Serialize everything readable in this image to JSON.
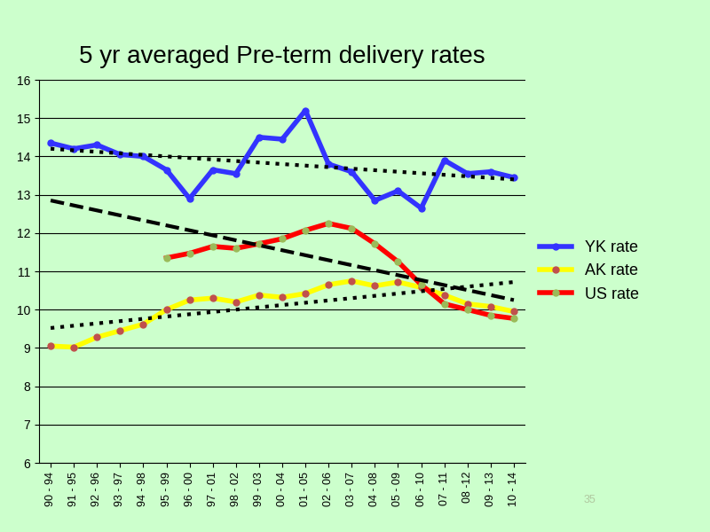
{
  "chart_data": {
    "type": "line",
    "title": "5 yr averaged Pre-term delivery rates",
    "categories": [
      "90 - 94",
      "91 - 95",
      "92 - 96",
      "93 - 97",
      "94 - 98",
      "95 - 99",
      "96 - 00",
      "97 - 01",
      "98 - 02",
      "99 - 03",
      "00 - 04",
      "01 - 05",
      "02 - 06",
      "03 - 07",
      "04 - 08",
      "05 - 09",
      "06 - 10",
      "07 - 11",
      "08 -12",
      "09 - 13",
      "10 - 14"
    ],
    "series": [
      {
        "name": "YK rate",
        "color": "#3333ff",
        "marker": "o",
        "line_style": "solid",
        "values": [
          14.35,
          14.2,
          14.3,
          14.05,
          14.0,
          13.65,
          12.9,
          13.65,
          13.55,
          14.5,
          14.45,
          15.2,
          13.8,
          13.6,
          12.85,
          13.1,
          12.65,
          13.9,
          13.55,
          13.6,
          13.45
        ]
      },
      {
        "name": "AK rate",
        "color": "#ffff00",
        "marker": "o",
        "line_style": "solid",
        "values": [
          9.05,
          9.02,
          9.28,
          9.45,
          9.62,
          10.0,
          10.25,
          10.3,
          10.2,
          10.38,
          10.32,
          10.42,
          10.65,
          10.75,
          10.62,
          10.72,
          10.58,
          10.38,
          10.15,
          10.08,
          9.95
        ]
      },
      {
        "name": "US rate",
        "color": "#ff0000",
        "marker": "o",
        "line_style": "solid",
        "values": [
          null,
          null,
          null,
          null,
          null,
          11.35,
          11.47,
          11.65,
          11.6,
          11.72,
          11.85,
          12.07,
          12.25,
          12.12,
          11.72,
          11.25,
          10.65,
          10.15,
          10.0,
          9.85,
          9.77
        ]
      },
      {
        "color": "#000000",
        "line_style": "dotted",
        "values": [
          14.2,
          14.16,
          14.12,
          14.08,
          14.04,
          14.0,
          13.96,
          13.92,
          13.88,
          13.84,
          13.8,
          13.76,
          13.72,
          13.68,
          13.64,
          13.6,
          13.56,
          13.52,
          13.48,
          13.44,
          13.4
        ]
      },
      {
        "color": "#000000",
        "line_style": "dotted",
        "values": [
          9.52,
          9.58,
          9.64,
          9.7,
          9.76,
          9.82,
          9.88,
          9.94,
          10.0,
          10.06,
          10.12,
          10.18,
          10.24,
          10.3,
          10.36,
          10.42,
          10.48,
          10.54,
          10.6,
          10.66,
          10.72
        ]
      },
      {
        "color": "#000000",
        "line_style": "dashed",
        "values": [
          12.85,
          12.72,
          12.59,
          12.46,
          12.33,
          12.2,
          12.07,
          11.94,
          11.81,
          11.68,
          11.55,
          11.42,
          11.29,
          11.16,
          11.03,
          10.9,
          10.77,
          10.64,
          10.51,
          10.38,
          10.25
        ]
      }
    ],
    "ylim": [
      6,
      16
    ],
    "yticks": [
      6,
      7,
      8,
      9,
      10,
      11,
      12,
      13,
      14,
      15,
      16
    ],
    "grid": true,
    "legend": "right"
  },
  "slide_number": "35"
}
